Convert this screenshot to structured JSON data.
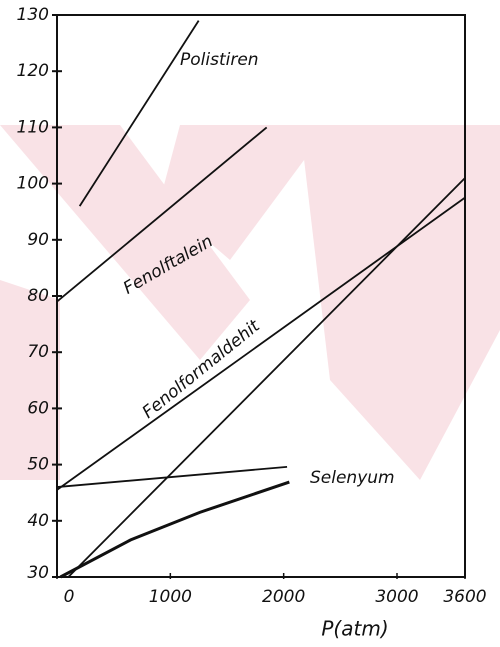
{
  "chart_data": {
    "type": "line",
    "x_label": "P(atm)",
    "xlim": [
      0,
      3600
    ],
    "xticks": [
      0,
      1000,
      2000,
      3000,
      3600
    ],
    "ylim": [
      30,
      130
    ],
    "yticks": [
      30,
      40,
      50,
      60,
      70,
      80,
      90,
      100,
      110,
      120,
      130
    ],
    "series": [
      {
        "name": "Polistiren",
        "color": "#111111",
        "x": [
          200,
          1250
        ],
        "values": [
          96,
          129
        ]
      },
      {
        "name": "Fenolftalein",
        "color": "#111111",
        "x": [
          0,
          1850
        ],
        "values": [
          79,
          110
        ]
      },
      {
        "name": "Fenolformaldehit",
        "color": "#111111",
        "x": [
          0,
          3600
        ],
        "values": [
          45.5,
          97.5
        ]
      },
      {
        "color": "#111111",
        "x": [
          100,
          3600
        ],
        "values": [
          30,
          101
        ]
      },
      {
        "color": "#111111",
        "x": [
          0,
          2030
        ],
        "values": [
          46,
          49.6
        ]
      },
      {
        "name": "Selenyum",
        "color": "#111111",
        "x": [
          30,
          650,
          1260,
          2050
        ],
        "values": [
          30,
          36.6,
          41.5,
          46.9
        ]
      }
    ]
  }
}
